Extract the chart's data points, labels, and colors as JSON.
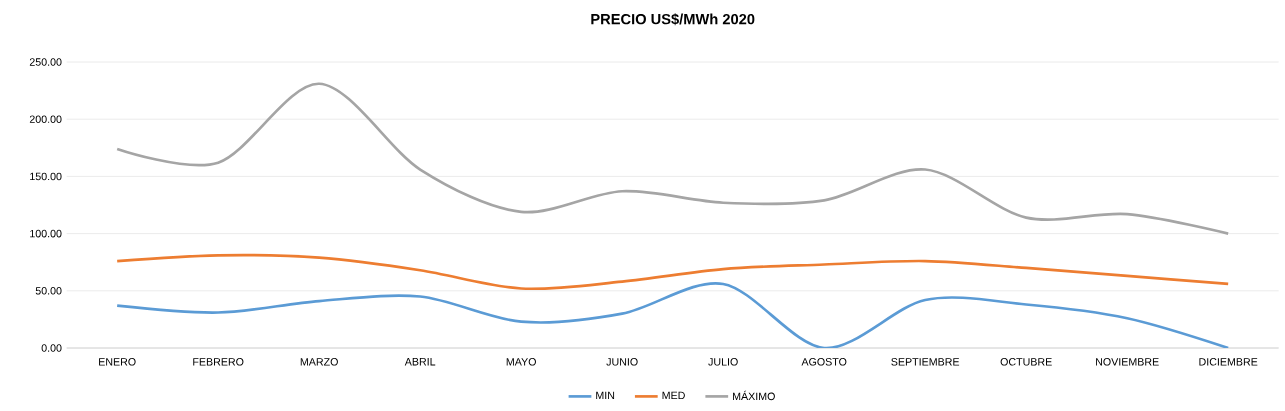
{
  "chart_data": {
    "type": "line",
    "title": "PRECIO US$/MWh 2020",
    "categories": [
      "ENERO",
      "FEBRERO",
      "MARZO",
      "ABRIL",
      "MAYO",
      "JUNIO",
      "JULIO",
      "AGOSTO",
      "SEPTIEMBRE",
      "OCTUBRE",
      "NOVIEMBRE",
      "DICIEMBRE"
    ],
    "series": [
      {
        "name": "MIN",
        "color": "#5b9bd5",
        "values": [
          37,
          31,
          41,
          45,
          23,
          30,
          56,
          0,
          42,
          38,
          26,
          0
        ]
      },
      {
        "name": "MED",
        "color": "#ed7d31",
        "values": [
          76,
          81,
          79,
          68,
          52,
          58,
          69,
          73,
          76,
          70,
          63,
          56
        ]
      },
      {
        "name": "MÁXIMO",
        "color": "#a5a5a5",
        "values": [
          174,
          162,
          231,
          156,
          119,
          137,
          127,
          129,
          156,
          114,
          117,
          100
        ]
      }
    ],
    "ylim": [
      0,
      250
    ],
    "yticks": [
      {
        "value": 0,
        "label": "0.00"
      },
      {
        "value": 50,
        "label": "50.00"
      },
      {
        "value": 100,
        "label": "100.00"
      },
      {
        "value": 150,
        "label": "150.00"
      },
      {
        "value": 200,
        "label": "200.00"
      },
      {
        "value": 250,
        "label": "250.00"
      }
    ],
    "grid": "y",
    "legend": "bottom",
    "marker": "none",
    "line_style": "solid"
  }
}
